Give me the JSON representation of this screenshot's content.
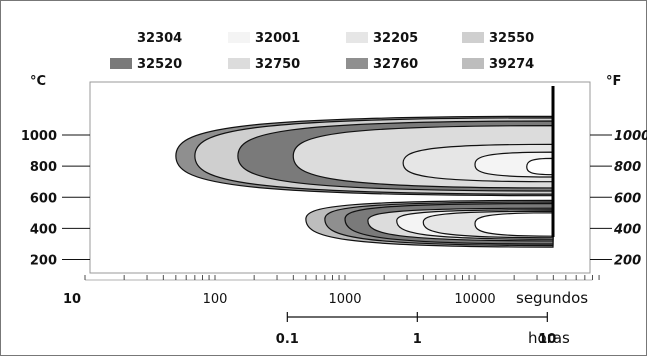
{
  "chart_data": {
    "type": "area",
    "title": "",
    "legend": {
      "placement": "top",
      "entries": [
        {
          "name": "32304",
          "color": "#ffffff"
        },
        {
          "name": "32001",
          "color": "#f4f4f4"
        },
        {
          "name": "32205",
          "color": "#e6e6e6"
        },
        {
          "name": "32550",
          "color": "#cfcfcf"
        },
        {
          "name": "32520",
          "color": "#7a7a7a"
        },
        {
          "name": "32750",
          "color": "#dcdcdc"
        },
        {
          "name": "32760",
          "color": "#8f8f8f"
        },
        {
          "name": "39274",
          "color": "#bdbdbd"
        }
      ]
    },
    "y_left": {
      "unit": "°C",
      "ticks": [
        "1000",
        "800",
        "600",
        "400",
        "200"
      ],
      "values": [
        1000,
        800,
        600,
        400,
        200
      ],
      "range": [
        120,
        1150
      ]
    },
    "y_right": {
      "unit": "°F",
      "ticks": [
        "1000",
        "800",
        "600",
        "400",
        "200"
      ]
    },
    "x_seconds": {
      "label": "segundos",
      "scale": "log",
      "ticks": [
        "10",
        "100",
        "1000",
        "10000"
      ],
      "values": [
        10,
        100,
        1000,
        10000
      ],
      "range": [
        10,
        100000
      ]
    },
    "x_hours": {
      "label": "horas",
      "ticks": [
        "0.1",
        "1",
        "10"
      ],
      "values": [
        0.1,
        1,
        10
      ]
    },
    "regions": [
      {
        "name": "32760",
        "lobe": "upper",
        "nose_seconds": 50,
        "temp_min": 610,
        "temp_max": 1120,
        "temp_nose": 865
      },
      {
        "name": "32550",
        "lobe": "upper",
        "nose_seconds": 70,
        "temp_min": 620,
        "temp_max": 1110,
        "temp_nose": 865
      },
      {
        "name": "32520",
        "lobe": "upper",
        "nose_seconds": 150,
        "temp_min": 640,
        "temp_max": 1090,
        "temp_nose": 865
      },
      {
        "name": "32750",
        "lobe": "upper",
        "nose_seconds": 400,
        "temp_min": 660,
        "temp_max": 1060,
        "temp_nose": 865
      },
      {
        "name": "32205",
        "lobe": "upper",
        "nose_seconds": 2800,
        "temp_min": 700,
        "temp_max": 940,
        "temp_nose": 820
      },
      {
        "name": "32001",
        "lobe": "upper",
        "nose_seconds": 10000,
        "temp_min": 730,
        "temp_max": 890,
        "temp_nose": 810
      },
      {
        "name": "32304",
        "lobe": "upper",
        "nose_seconds": 25000,
        "temp_min": 745,
        "temp_max": 850,
        "temp_nose": 795
      },
      {
        "name": "39274",
        "lobe": "lower",
        "nose_seconds": 500,
        "temp_min": 280,
        "temp_max": 580,
        "temp_nose": 460
      },
      {
        "name": "32760",
        "lobe": "lower",
        "nose_seconds": 700,
        "temp_min": 290,
        "temp_max": 570,
        "temp_nose": 460
      },
      {
        "name": "32520",
        "lobe": "lower",
        "nose_seconds": 1000,
        "temp_min": 300,
        "temp_max": 560,
        "temp_nose": 460
      },
      {
        "name": "32750",
        "lobe": "lower",
        "nose_seconds": 1500,
        "temp_min": 320,
        "temp_max": 530,
        "temp_nose": 450
      },
      {
        "name": "32001",
        "lobe": "lower",
        "nose_seconds": 2500,
        "temp_min": 330,
        "temp_max": 520,
        "temp_nose": 450
      },
      {
        "name": "32205",
        "lobe": "lower",
        "nose_seconds": 4000,
        "temp_min": 340,
        "temp_max": 510,
        "temp_nose": 440
      },
      {
        "name": "32304",
        "lobe": "lower",
        "nose_seconds": 10000,
        "temp_min": 350,
        "temp_max": 500,
        "temp_nose": 430
      }
    ]
  }
}
